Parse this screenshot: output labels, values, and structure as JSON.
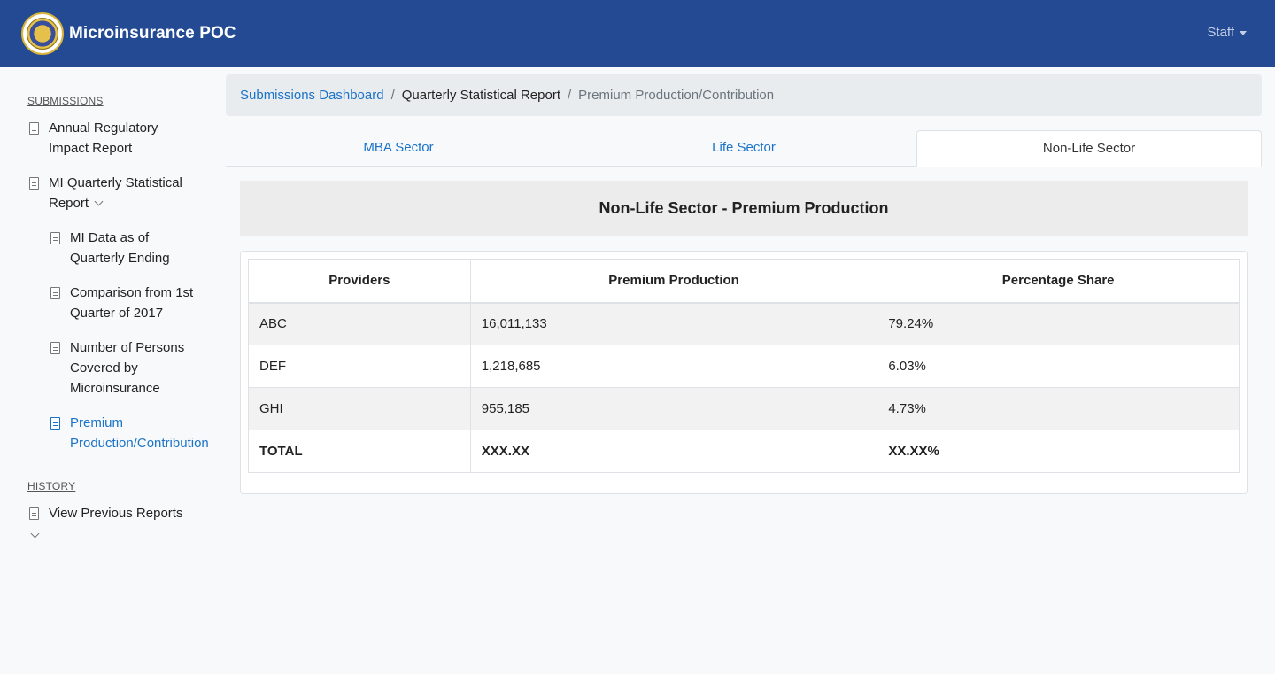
{
  "navbar": {
    "brand": "Microinsurance POC",
    "user_menu": "Staff"
  },
  "sidebar": {
    "submissions_heading": "SUBMISSIONS",
    "items": [
      {
        "label": "Annual Regulatory Impact Report"
      },
      {
        "label": "MI Quarterly Statistical Report"
      },
      {
        "label": "MI Data as of Quarterly Ending"
      },
      {
        "label": "Comparison from 1st Quarter of 2017"
      },
      {
        "label": "Number of Persons Covered by Microinsurance"
      },
      {
        "label": "Premium Production/Contribution"
      }
    ],
    "history_heading": "HISTORY",
    "history_items": [
      {
        "label": "View Previous Reports"
      }
    ]
  },
  "breadcrumb": {
    "home": "Submissions Dashboard",
    "middle": "Quarterly Statistical Report",
    "current": "Premium Production/Contribution",
    "separator": "/"
  },
  "tabs": [
    {
      "label": "MBA Sector"
    },
    {
      "label": "Life Sector"
    },
    {
      "label": "Non-Life Sector"
    }
  ],
  "section": {
    "title": "Non-Life Sector - Premium Production"
  },
  "table": {
    "headers": [
      "Providers",
      "Premium Production",
      "Percentage Share"
    ],
    "rows": [
      [
        "ABC",
        "16,011,133",
        "79.24%"
      ],
      [
        "DEF",
        "1,218,685",
        "6.03%"
      ],
      [
        "GHI",
        "955,185",
        "4.73%"
      ]
    ],
    "total": [
      "TOTAL",
      "XXX.XX",
      "XX.XX%"
    ]
  },
  "colors": {
    "navbar": "#234a93",
    "link": "#1a73c8"
  }
}
